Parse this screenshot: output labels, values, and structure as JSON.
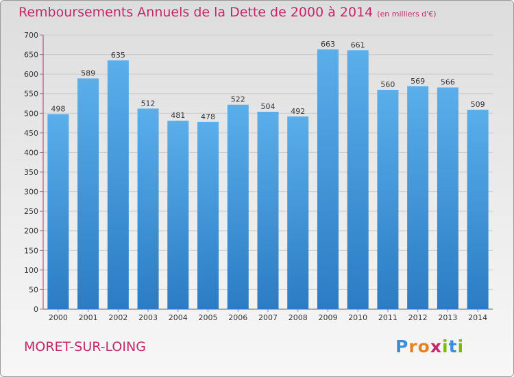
{
  "header": {
    "title": "Remboursements Annuels de la Dette de 2000 à 2014",
    "unit": "(en milliers d'€)"
  },
  "footer": {
    "commune": "MORET-SUR-LOING",
    "brand": "Proxiti",
    "brand_letters": [
      "P",
      "r",
      "o",
      "x",
      "i",
      "t",
      "i"
    ],
    "brand_colors": [
      "#3a8fd8",
      "#e8821e",
      "#e8821e",
      "#c2296b",
      "#7fb800",
      "#3a8fd8",
      "#7fb800"
    ]
  },
  "colors": {
    "title": "#c2296b",
    "bar_light": "#5aaeea",
    "bar_dark": "#2b7cc4",
    "axis_accent": "#c2296b",
    "grid": "#cccccc"
  },
  "chart_data": {
    "type": "bar",
    "title": "Remboursements Annuels de la Dette de 2000 à 2014",
    "subtitle": "(en milliers d'€)",
    "categories": [
      "2000",
      "2001",
      "2002",
      "2003",
      "2004",
      "2005",
      "2006",
      "2007",
      "2008",
      "2009",
      "2010",
      "2011",
      "2012",
      "2013",
      "2014"
    ],
    "values": [
      498,
      589,
      635,
      512,
      481,
      478,
      522,
      504,
      492,
      663,
      661,
      560,
      569,
      566,
      509
    ],
    "ylim": [
      0,
      700
    ],
    "yticks": [
      0,
      50,
      100,
      150,
      200,
      250,
      300,
      350,
      400,
      450,
      500,
      550,
      600,
      650,
      700
    ],
    "grid": true,
    "data_labels": true,
    "legend": "none"
  }
}
